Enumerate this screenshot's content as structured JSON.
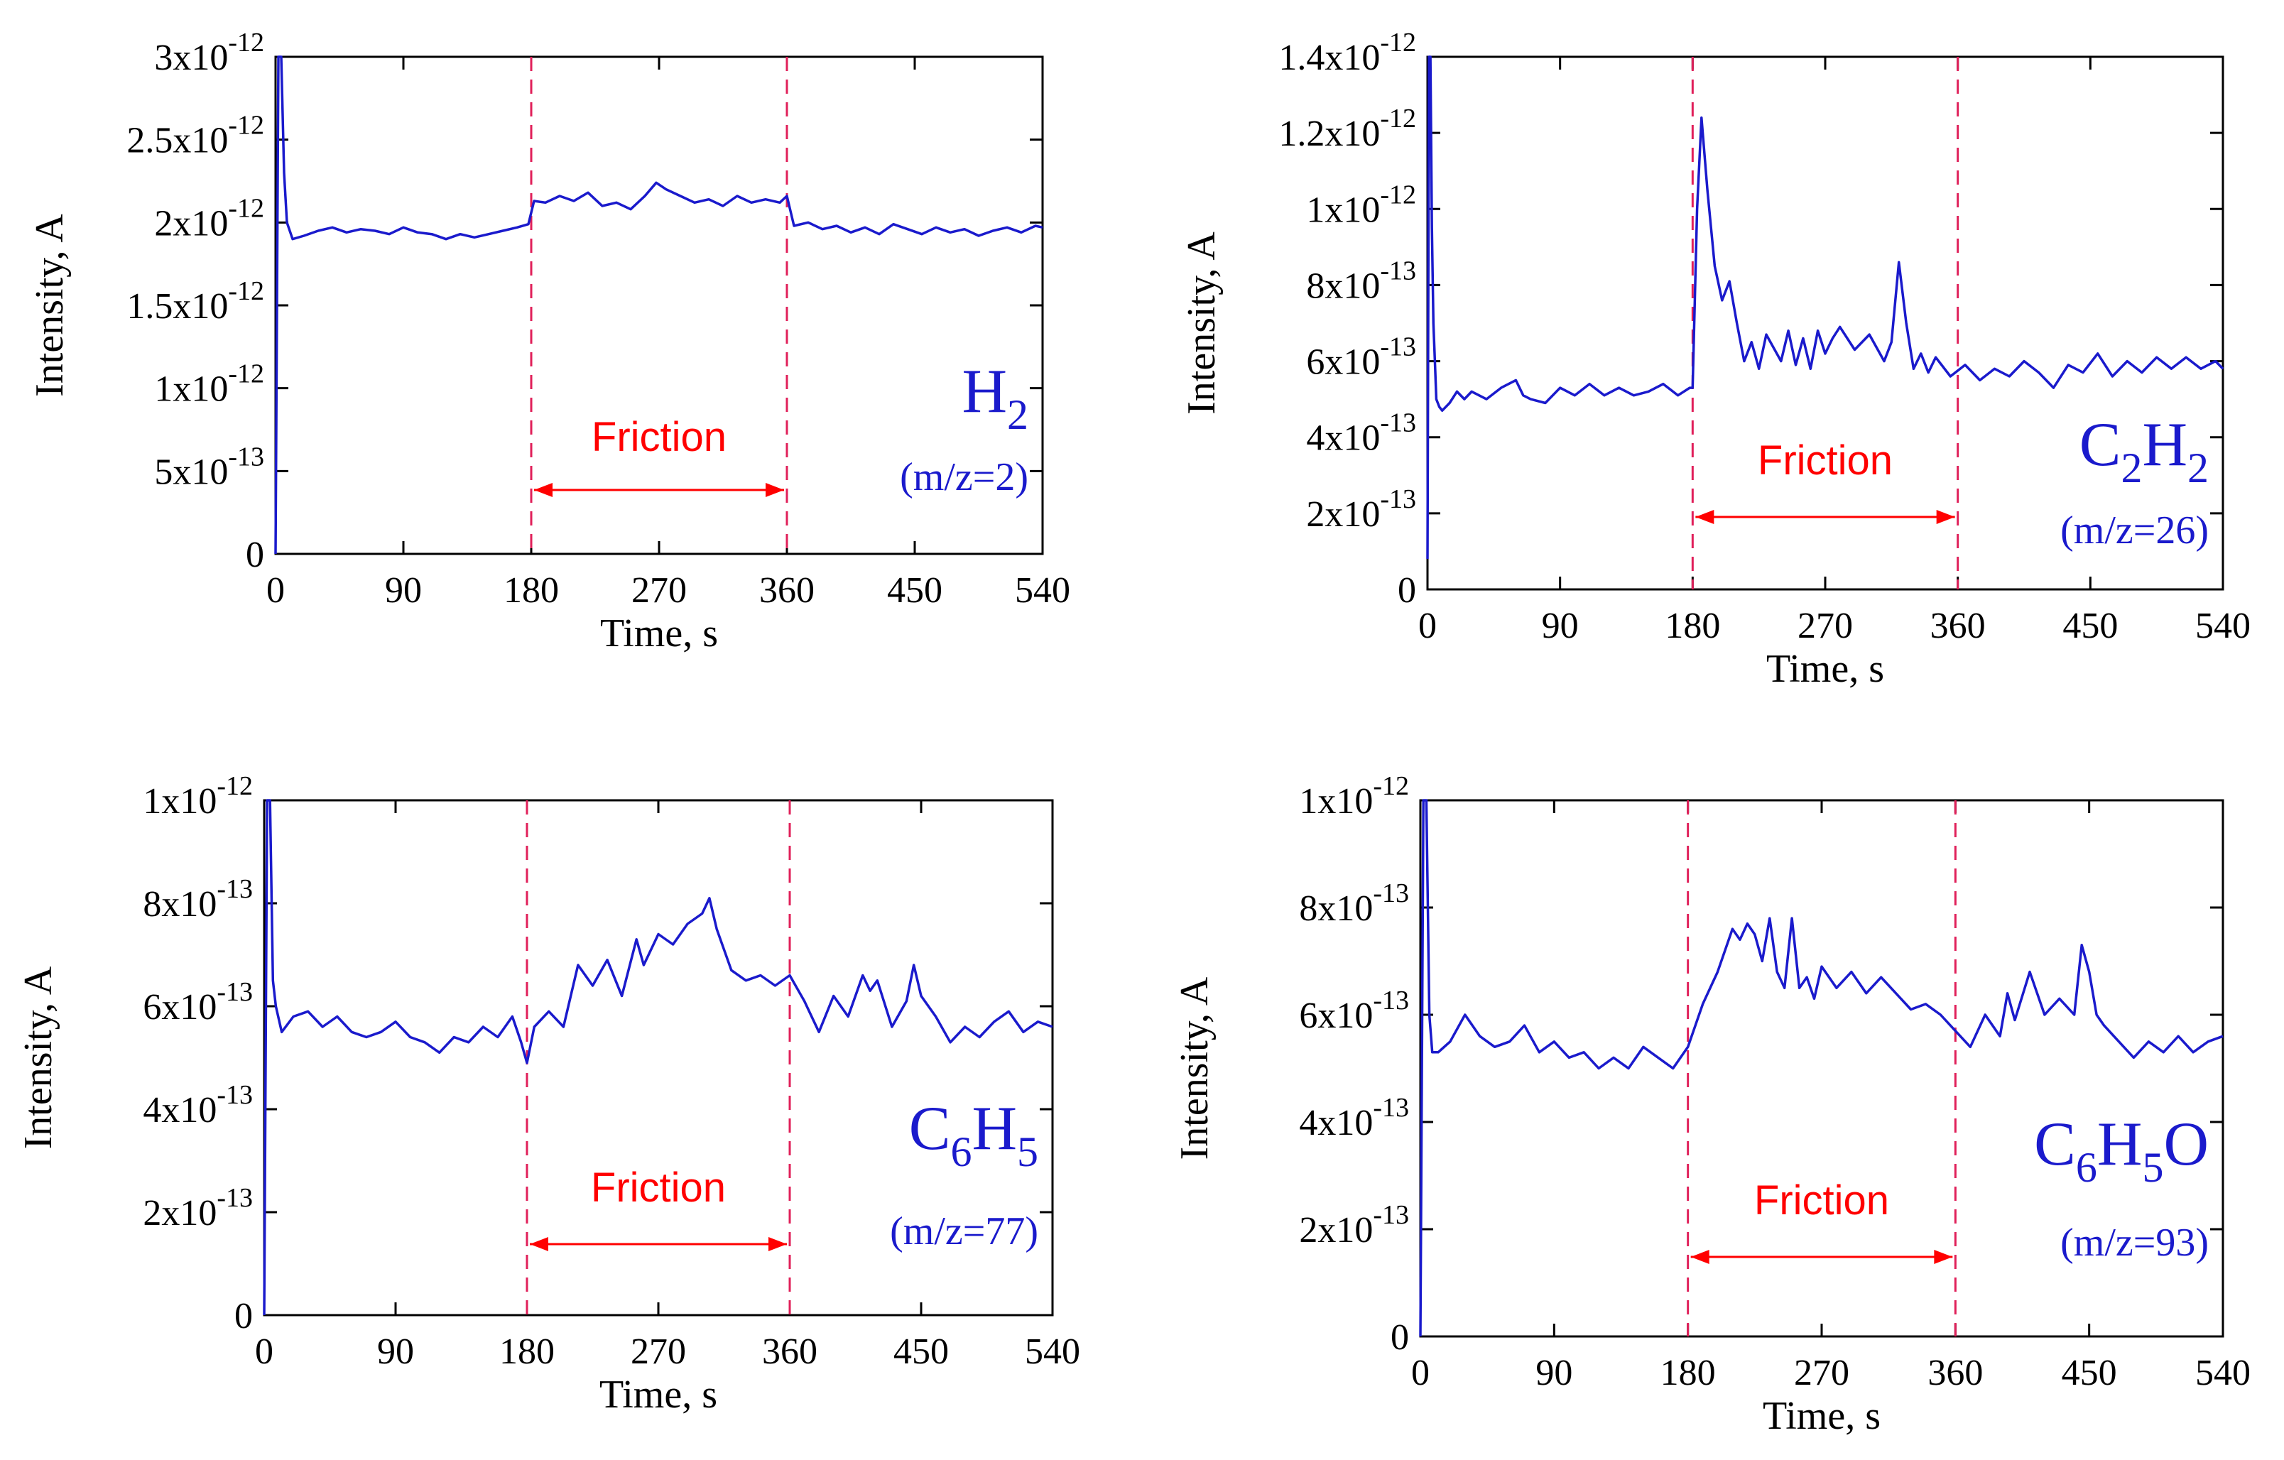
{
  "colors": {
    "series": "#1a1acc",
    "friction": "#ff0000",
    "marker": "#e0205a",
    "axis": "#000000"
  },
  "chart_data": [
    {
      "type": "line",
      "species": {
        "main": "H",
        "sub": "2",
        "tail": ""
      },
      "mz": "(m/z=2)",
      "xlabel": "Time, s",
      "ylabel": "Intensity, A",
      "xlim": [
        0,
        540
      ],
      "ylim": [
        0,
        3e-12
      ],
      "xticks": [
        0,
        90,
        180,
        270,
        360,
        450,
        540
      ],
      "xtick_labels": [
        "0",
        "90",
        "180",
        "270",
        "360",
        "450",
        "540"
      ],
      "yticks": [
        0,
        5e-13,
        1e-12,
        1.5e-12,
        2e-12,
        2.5e-12,
        3e-12
      ],
      "ytick_labels": [
        {
          "mant": "0",
          "exp": ""
        },
        {
          "mant": "5x10",
          "exp": "-13"
        },
        {
          "mant": "1x10",
          "exp": "-12"
        },
        {
          "mant": "1.5x10",
          "exp": "-12"
        },
        {
          "mant": "2x10",
          "exp": "-12"
        },
        {
          "mant": "2.5x10",
          "exp": "-12"
        },
        {
          "mant": "3x10",
          "exp": "-12"
        }
      ],
      "friction": {
        "start": 180,
        "end": 360,
        "label": "Friction"
      },
      "series": [
        {
          "name": "H2",
          "x": [
            0,
            2,
            4,
            6,
            8,
            12,
            20,
            30,
            40,
            50,
            60,
            70,
            80,
            90,
            100,
            110,
            120,
            130,
            140,
            150,
            160,
            170,
            178,
            182,
            190,
            200,
            210,
            220,
            230,
            240,
            250,
            260,
            268,
            275,
            285,
            295,
            305,
            315,
            325,
            335,
            345,
            355,
            360,
            365,
            375,
            385,
            395,
            405,
            415,
            425,
            435,
            445,
            455,
            465,
            475,
            485,
            495,
            505,
            515,
            525,
            535,
            540
          ],
          "y": [
            0,
            3e-12,
            3e-12,
            2.3e-12,
            2e-12,
            1.9e-12,
            1.92e-12,
            1.95e-12,
            1.97e-12,
            1.94e-12,
            1.96e-12,
            1.95e-12,
            1.93e-12,
            1.97e-12,
            1.94e-12,
            1.93e-12,
            1.9e-12,
            1.93e-12,
            1.91e-12,
            1.93e-12,
            1.95e-12,
            1.97e-12,
            1.99e-12,
            2.13e-12,
            2.12e-12,
            2.16e-12,
            2.13e-12,
            2.18e-12,
            2.1e-12,
            2.12e-12,
            2.08e-12,
            2.16e-12,
            2.24e-12,
            2.2e-12,
            2.16e-12,
            2.12e-12,
            2.14e-12,
            2.1e-12,
            2.16e-12,
            2.12e-12,
            2.14e-12,
            2.12e-12,
            2.16e-12,
            1.98e-12,
            2e-12,
            1.96e-12,
            1.98e-12,
            1.94e-12,
            1.97e-12,
            1.93e-12,
            1.99e-12,
            1.96e-12,
            1.93e-12,
            1.97e-12,
            1.94e-12,
            1.96e-12,
            1.92e-12,
            1.95e-12,
            1.97e-12,
            1.94e-12,
            1.98e-12,
            1.97e-12
          ]
        }
      ]
    },
    {
      "type": "line",
      "species": {
        "main": "C",
        "sub": "2",
        "tail": "H",
        "tail_sub": "2"
      },
      "mz": "(m/z=26)",
      "xlabel": "Time, s",
      "ylabel": "Intensity, A",
      "xlim": [
        0,
        540
      ],
      "ylim": [
        0,
        1.4e-12
      ],
      "xticks": [
        0,
        90,
        180,
        270,
        360,
        450,
        540
      ],
      "xtick_labels": [
        "0",
        "90",
        "180",
        "270",
        "360",
        "450",
        "540"
      ],
      "yticks": [
        0,
        2e-13,
        4e-13,
        6e-13,
        8e-13,
        1e-12,
        1.2e-12,
        1.4e-12
      ],
      "ytick_labels": [
        {
          "mant": "0",
          "exp": ""
        },
        {
          "mant": "2x10",
          "exp": "-13"
        },
        {
          "mant": "4x10",
          "exp": "-13"
        },
        {
          "mant": "6x10",
          "exp": "-13"
        },
        {
          "mant": "8x10",
          "exp": "-13"
        },
        {
          "mant": "1x10",
          "exp": "-12"
        },
        {
          "mant": "1.2x10",
          "exp": "-12"
        },
        {
          "mant": "1.4x10",
          "exp": "-12"
        }
      ],
      "friction": {
        "start": 180,
        "end": 360,
        "label": "Friction"
      },
      "series": [
        {
          "name": "C2H2",
          "x": [
            0,
            1,
            2,
            3,
            4,
            5,
            6,
            8,
            10,
            15,
            20,
            25,
            30,
            40,
            50,
            60,
            65,
            70,
            80,
            90,
            100,
            110,
            120,
            130,
            140,
            150,
            160,
            170,
            178,
            180,
            183,
            186,
            190,
            195,
            200,
            205,
            210,
            215,
            220,
            225,
            230,
            240,
            245,
            250,
            255,
            260,
            265,
            270,
            275,
            280,
            290,
            300,
            310,
            315,
            320,
            325,
            330,
            335,
            340,
            345,
            355,
            365,
            375,
            385,
            395,
            405,
            415,
            425,
            435,
            445,
            455,
            465,
            475,
            485,
            495,
            505,
            515,
            525,
            535,
            540
          ],
          "y": [
            8e-14,
            1.4e-12,
            1.4e-12,
            9.5e-13,
            7e-13,
            6e-13,
            5e-13,
            4.8e-13,
            4.7e-13,
            4.9e-13,
            5.2e-13,
            5e-13,
            5.2e-13,
            5e-13,
            5.3e-13,
            5.5e-13,
            5.1e-13,
            5e-13,
            4.9e-13,
            5.3e-13,
            5.1e-13,
            5.4e-13,
            5.1e-13,
            5.3e-13,
            5.1e-13,
            5.2e-13,
            5.4e-13,
            5.1e-13,
            5.3e-13,
            5.3e-13,
            1e-12,
            1.24e-12,
            1.05e-12,
            8.5e-13,
            7.6e-13,
            8.1e-13,
            7e-13,
            6e-13,
            6.5e-13,
            5.8e-13,
            6.7e-13,
            6e-13,
            6.8e-13,
            5.9e-13,
            6.6e-13,
            5.8e-13,
            6.8e-13,
            6.2e-13,
            6.6e-13,
            6.9e-13,
            6.3e-13,
            6.7e-13,
            6e-13,
            6.5e-13,
            8.6e-13,
            7e-13,
            5.8e-13,
            6.2e-13,
            5.7e-13,
            6.1e-13,
            5.6e-13,
            5.9e-13,
            5.5e-13,
            5.8e-13,
            5.6e-13,
            6e-13,
            5.7e-13,
            5.3e-13,
            5.9e-13,
            5.7e-13,
            6.2e-13,
            5.6e-13,
            6e-13,
            5.7e-13,
            6.1e-13,
            5.8e-13,
            6.1e-13,
            5.8e-13,
            6e-13,
            5.8e-13
          ]
        }
      ]
    },
    {
      "type": "line",
      "species": {
        "main": "C",
        "sub": "6",
        "tail": "H",
        "tail_sub": "5"
      },
      "mz": "(m/z=77)",
      "xlabel": "Time, s",
      "ylabel": "Intensity, A",
      "xlim": [
        0,
        540
      ],
      "ylim": [
        0,
        1e-12
      ],
      "xticks": [
        0,
        90,
        180,
        270,
        360,
        450,
        540
      ],
      "xtick_labels": [
        "0",
        "90",
        "180",
        "270",
        "360",
        "450",
        "540"
      ],
      "yticks": [
        0,
        2e-13,
        4e-13,
        6e-13,
        8e-13,
        1e-12
      ],
      "ytick_labels": [
        {
          "mant": "0",
          "exp": ""
        },
        {
          "mant": "2x10",
          "exp": "-13"
        },
        {
          "mant": "4x10",
          "exp": "-13"
        },
        {
          "mant": "6x10",
          "exp": "-13"
        },
        {
          "mant": "8x10",
          "exp": "-13"
        },
        {
          "mant": "1x10",
          "exp": "-12"
        }
      ],
      "friction": {
        "start": 180,
        "end": 360,
        "label": "Friction"
      },
      "series": [
        {
          "name": "C6H5",
          "x": [
            0,
            2,
            4,
            6,
            8,
            12,
            20,
            30,
            40,
            50,
            60,
            70,
            80,
            90,
            100,
            110,
            120,
            130,
            140,
            150,
            160,
            170,
            176,
            180,
            185,
            195,
            205,
            215,
            225,
            235,
            245,
            255,
            260,
            270,
            280,
            290,
            300,
            305,
            310,
            320,
            330,
            340,
            350,
            360,
            370,
            380,
            390,
            400,
            410,
            415,
            420,
            430,
            440,
            445,
            450,
            460,
            470,
            480,
            490,
            500,
            510,
            520,
            530,
            540
          ],
          "y": [
            0,
            1e-12,
            1e-12,
            6.5e-13,
            6e-13,
            5.5e-13,
            5.8e-13,
            5.9e-13,
            5.6e-13,
            5.8e-13,
            5.5e-13,
            5.4e-13,
            5.5e-13,
            5.7e-13,
            5.4e-13,
            5.3e-13,
            5.1e-13,
            5.4e-13,
            5.3e-13,
            5.6e-13,
            5.4e-13,
            5.8e-13,
            5.3e-13,
            4.9e-13,
            5.6e-13,
            5.9e-13,
            5.6e-13,
            6.8e-13,
            6.4e-13,
            6.9e-13,
            6.2e-13,
            7.3e-13,
            6.8e-13,
            7.4e-13,
            7.2e-13,
            7.6e-13,
            7.8e-13,
            8.1e-13,
            7.5e-13,
            6.7e-13,
            6.5e-13,
            6.6e-13,
            6.4e-13,
            6.6e-13,
            6.1e-13,
            5.5e-13,
            6.2e-13,
            5.8e-13,
            6.6e-13,
            6.3e-13,
            6.5e-13,
            5.6e-13,
            6.1e-13,
            6.8e-13,
            6.2e-13,
            5.8e-13,
            5.3e-13,
            5.6e-13,
            5.4e-13,
            5.7e-13,
            5.9e-13,
            5.5e-13,
            5.7e-13,
            5.6e-13
          ]
        }
      ]
    },
    {
      "type": "line",
      "species": {
        "main": "C",
        "sub": "6",
        "tail": "H",
        "tail_sub": "5",
        "end": "O"
      },
      "mz": "(m/z=93)",
      "xlabel": "Time, s",
      "ylabel": "Intensity, A",
      "xlim": [
        0,
        540
      ],
      "ylim": [
        0,
        1e-12
      ],
      "xticks": [
        0,
        90,
        180,
        270,
        360,
        450,
        540
      ],
      "xtick_labels": [
        "0",
        "90",
        "180",
        "270",
        "360",
        "450",
        "540"
      ],
      "yticks": [
        0,
        2e-13,
        4e-13,
        6e-13,
        8e-13,
        1e-12
      ],
      "ytick_labels": [
        {
          "mant": "0",
          "exp": ""
        },
        {
          "mant": "2x10",
          "exp": "-13"
        },
        {
          "mant": "4x10",
          "exp": "-13"
        },
        {
          "mant": "6x10",
          "exp": "-13"
        },
        {
          "mant": "8x10",
          "exp": "-13"
        },
        {
          "mant": "1x10",
          "exp": "-12"
        }
      ],
      "friction": {
        "start": 180,
        "end": 360,
        "label": "Friction"
      },
      "series": [
        {
          "name": "C6H5O",
          "x": [
            0,
            2,
            4,
            6,
            8,
            12,
            20,
            30,
            40,
            50,
            60,
            70,
            80,
            90,
            100,
            110,
            120,
            130,
            140,
            150,
            160,
            170,
            180,
            190,
            200,
            210,
            215,
            220,
            225,
            230,
            235,
            240,
            245,
            250,
            255,
            260,
            265,
            270,
            280,
            290,
            300,
            310,
            320,
            330,
            340,
            350,
            360,
            370,
            380,
            390,
            395,
            400,
            410,
            420,
            430,
            440,
            445,
            450,
            455,
            460,
            470,
            480,
            490,
            500,
            510,
            520,
            530,
            540
          ],
          "y": [
            0,
            1e-12,
            1e-12,
            6e-13,
            5.3e-13,
            5.3e-13,
            5.5e-13,
            6e-13,
            5.6e-13,
            5.4e-13,
            5.5e-13,
            5.8e-13,
            5.3e-13,
            5.5e-13,
            5.2e-13,
            5.3e-13,
            5e-13,
            5.2e-13,
            5e-13,
            5.4e-13,
            5.2e-13,
            5e-13,
            5.4e-13,
            6.2e-13,
            6.8e-13,
            7.6e-13,
            7.4e-13,
            7.7e-13,
            7.5e-13,
            7e-13,
            7.8e-13,
            6.8e-13,
            6.5e-13,
            7.8e-13,
            6.5e-13,
            6.7e-13,
            6.3e-13,
            6.9e-13,
            6.5e-13,
            6.8e-13,
            6.4e-13,
            6.7e-13,
            6.4e-13,
            6.1e-13,
            6.2e-13,
            6e-13,
            5.7e-13,
            5.4e-13,
            6e-13,
            5.6e-13,
            6.4e-13,
            5.9e-13,
            6.8e-13,
            6e-13,
            6.3e-13,
            6e-13,
            7.3e-13,
            6.8e-13,
            6e-13,
            5.8e-13,
            5.5e-13,
            5.2e-13,
            5.5e-13,
            5.3e-13,
            5.6e-13,
            5.3e-13,
            5.5e-13,
            5.6e-13
          ]
        }
      ]
    }
  ]
}
